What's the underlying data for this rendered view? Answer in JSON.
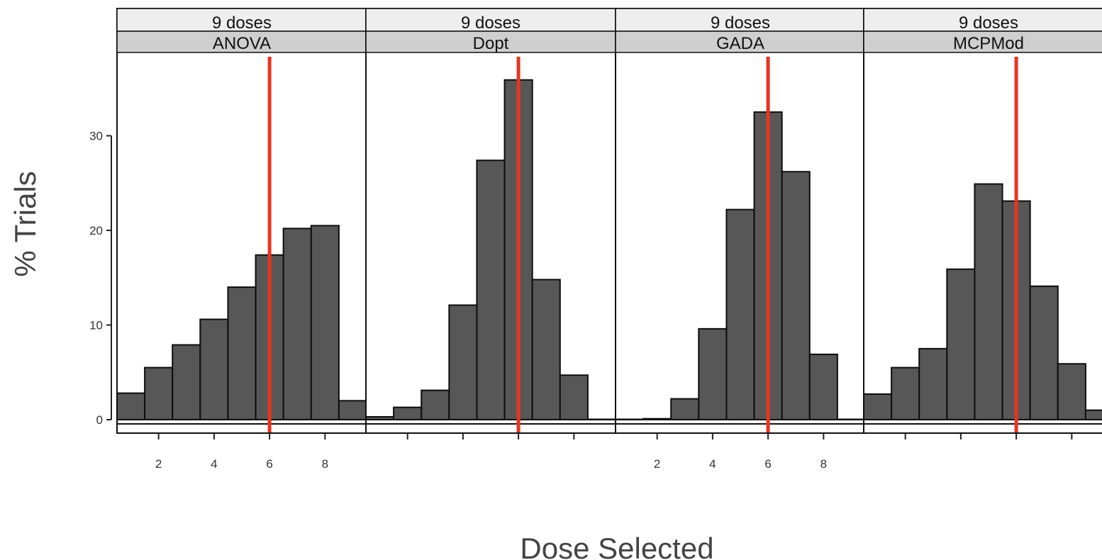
{
  "chart_data": {
    "type": "bar",
    "ylabel": "% Trials",
    "xlabel": "Dose Selected",
    "ylim": [
      0,
      38
    ],
    "xlim": [
      0.5,
      9.5
    ],
    "yticks": [
      0,
      10,
      20,
      30
    ],
    "xticks": [
      2,
      4,
      6,
      8
    ],
    "xtick_labels_on_panels": [
      0,
      2
    ],
    "target_dose": 6,
    "colors": {
      "bar_fill": "#575757",
      "bar_stroke": "#0d0d0d",
      "target_line": "#e8351f",
      "strip_top": "#eeeeee",
      "strip_bottom": "#cfcfcf"
    },
    "panels": [
      {
        "strip_top": "9 doses",
        "strip_bottom": "ANOVA",
        "categories": [
          1,
          2,
          3,
          4,
          5,
          6,
          7,
          8,
          9
        ],
        "values": [
          2.8,
          5.5,
          7.9,
          10.6,
          14.0,
          17.4,
          20.2,
          20.5,
          2.0
        ]
      },
      {
        "strip_top": "9 doses",
        "strip_bottom": "Dopt",
        "categories": [
          1,
          2,
          3,
          4,
          5,
          6,
          7,
          8,
          9
        ],
        "values": [
          0.3,
          1.3,
          3.1,
          12.1,
          27.4,
          35.9,
          14.8,
          4.7,
          0.0
        ]
      },
      {
        "strip_top": "9 doses",
        "strip_bottom": "GADA",
        "categories": [
          1,
          2,
          3,
          4,
          5,
          6,
          7,
          8,
          9
        ],
        "values": [
          0.0,
          0.1,
          2.2,
          9.6,
          22.2,
          32.5,
          26.2,
          6.9,
          0.0
        ]
      },
      {
        "strip_top": "9 doses",
        "strip_bottom": "MCPMod",
        "categories": [
          1,
          2,
          3,
          4,
          5,
          6,
          7,
          8,
          9
        ],
        "values": [
          2.7,
          5.5,
          7.5,
          15.9,
          24.9,
          23.1,
          14.1,
          5.9,
          1.0
        ]
      }
    ]
  }
}
